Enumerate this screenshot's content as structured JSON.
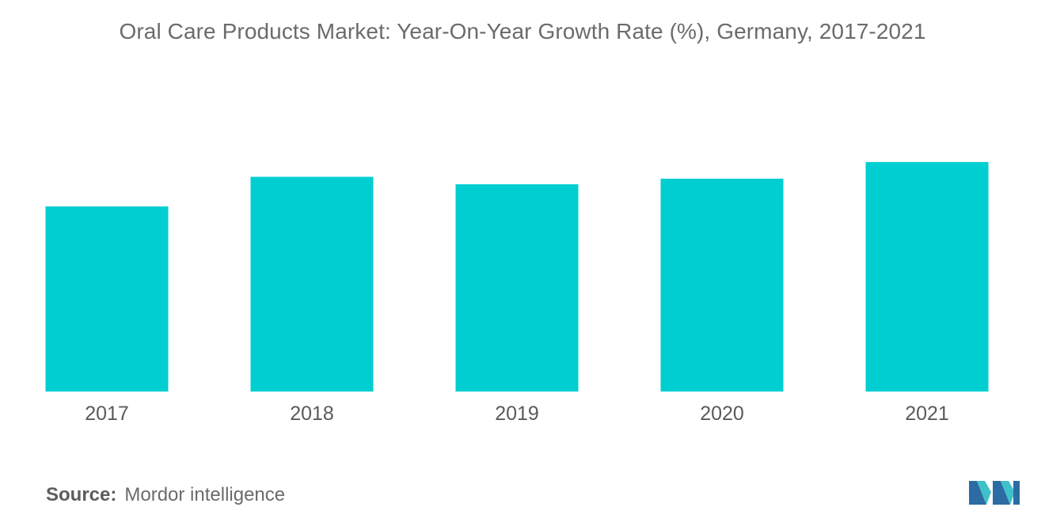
{
  "chart_data": {
    "type": "bar",
    "title": "Oral Care Products Market: Year-On-Year Growth Rate (%), Germany, 2017-2021",
    "categories": [
      "2017",
      "2018",
      "2019",
      "2020",
      "2021"
    ],
    "values": [
      5.0,
      5.8,
      5.6,
      5.75,
      6.2
    ],
    "xlabel": "",
    "ylabel": "",
    "ylim": [
      0,
      10
    ],
    "grid": false,
    "legend": "none",
    "bar_color": "#00ced1"
  },
  "source": {
    "label": "Source:",
    "text": "Mordor intelligence"
  },
  "logo": {
    "icon": "mordor-intelligence-logo",
    "colors": [
      "#2b6ca3",
      "#3fc1c9"
    ]
  }
}
